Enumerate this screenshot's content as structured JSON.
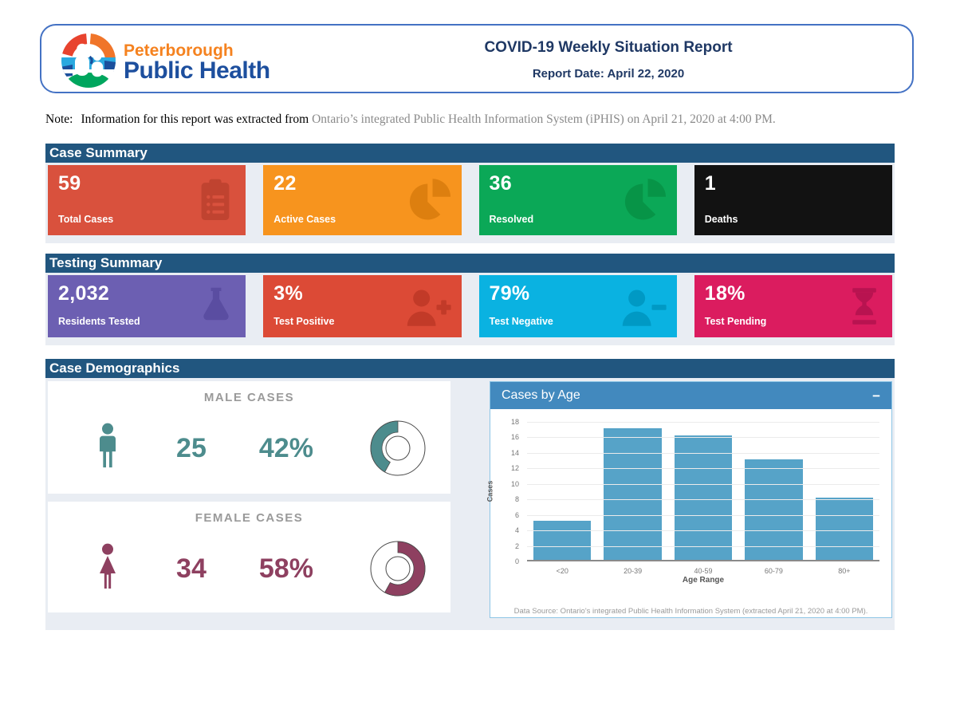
{
  "theme": {
    "section_header_bg": "#21567f",
    "section_panel_bg": "#e9edf3",
    "header_border": "#4472c4",
    "title_color": "#1f3864",
    "chart_header_bg": "#4289be",
    "chart_panel_border": "#8ec6e6"
  },
  "header": {
    "logo_line1": "Peterborough",
    "logo_line2": "Public Health",
    "title": "COVID-19 Weekly Situation Report",
    "report_date": "Report Date: April 22, 2020"
  },
  "note": {
    "prefix": "Note:",
    "dark": "Information for this report was extracted from",
    "gray": "Ontario’s integrated Public Health Information System (iPHIS) on April 21, 2020 at 4:00 PM."
  },
  "sections": {
    "case_summary": {
      "title": "Case Summary",
      "cards": [
        {
          "value": "59",
          "label": "Total Cases",
          "color": "#d9513d",
          "icon": "clipboard-list",
          "icon_color": "#c04330"
        },
        {
          "value": "22",
          "label": "Active Cases",
          "color": "#f7941e",
          "icon": "pie-chart",
          "icon_color": "#dd7f0f"
        },
        {
          "value": "36",
          "label": "Resolved",
          "color": "#0ba857",
          "icon": "pie-chart",
          "icon_color": "#079447"
        },
        {
          "value": "1",
          "label": "Deaths",
          "color": "#121212",
          "icon": "none",
          "icon_color": "#121212"
        }
      ]
    },
    "testing_summary": {
      "title": "Testing Summary",
      "cards": [
        {
          "value": "2,032",
          "label": "Residents Tested",
          "color": "#6c5fb2",
          "icon": "flask",
          "icon_color": "#5a4da1"
        },
        {
          "value": "3%",
          "label": "Test Positive",
          "color": "#dc4a36",
          "icon": "person-plus",
          "icon_color": "#c23a28"
        },
        {
          "value": "79%",
          "label": "Test Negative",
          "color": "#0ab2e1",
          "icon": "person-minus",
          "icon_color": "#0099c4"
        },
        {
          "value": "18%",
          "label": "Test Pending",
          "color": "#db1c5f",
          "icon": "hourglass",
          "icon_color": "#b81350"
        }
      ]
    },
    "case_demographics": {
      "title": "Case Demographics",
      "male": {
        "label": "MALE CASES",
        "count": "25",
        "percent": "42%",
        "percent_value": 42,
        "color": "#4d8c8d",
        "fill_direction": "ccw"
      },
      "female": {
        "label": "FEMALE CASES",
        "count": "34",
        "percent": "58%",
        "percent_value": 58,
        "color": "#8e4060",
        "fill_direction": "cw"
      }
    }
  },
  "chart_data": {
    "type": "bar",
    "title": "Cases by Age",
    "collapse_label": "−",
    "categories": [
      "<20",
      "20-39",
      "40-59",
      "60-79",
      "80+"
    ],
    "values": [
      5,
      17,
      16,
      13,
      8
    ],
    "xlabel": "Age Range",
    "ylabel": "Cases",
    "ylim": [
      0,
      18
    ],
    "ytick_step": 2,
    "bar_color": "#56a3c8",
    "grid": true,
    "legend": false,
    "source_note": "Data Source: Ontario's integrated Public Health Information System (extracted April 21, 2020 at 4:00 PM)."
  }
}
